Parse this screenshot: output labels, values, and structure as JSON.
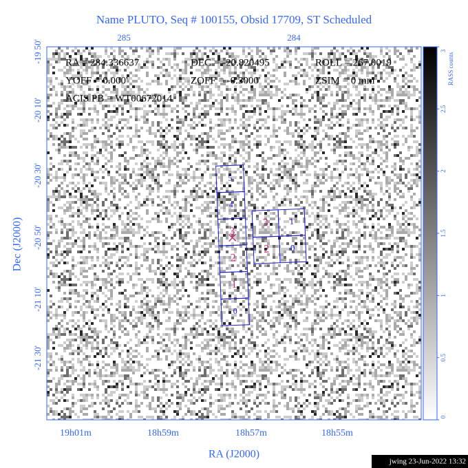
{
  "title": "Name PLUTO, Seq # 100155, Obsid 17709, ST Scheduled",
  "top_axis": {
    "ticks": [
      "285",
      "284"
    ]
  },
  "left_axis": {
    "label": "Dec (J2000)",
    "ticks": [
      "-19 50'",
      "-20 10'",
      "-20 30'",
      "-20 50'",
      "-21 10'",
      "-21 30'"
    ]
  },
  "bottom_axis": {
    "label": "RA (J2000)",
    "ticks": [
      "19h01m",
      "18h59m",
      "18h57m",
      "18h55m"
    ]
  },
  "colorbar": {
    "label": "RASS counts",
    "ticks": [
      "0",
      "0.5",
      "1",
      "1.5",
      "2",
      "2.5",
      "3"
    ]
  },
  "info": [
    [
      "RA = 284.336637",
      "DEC = -20.820495",
      "ROLL = 267.0019"
    ],
    [
      "YOFF = 0.000'",
      "ZOFF = -0.3000'",
      "ZSIM = 0 mm"
    ],
    [
      "ACIS PB = WT00672014"
    ]
  ],
  "acis_s": [
    "5",
    "4",
    "3",
    "2",
    "1",
    "0"
  ],
  "acis_i": [
    "3",
    "1",
    "2",
    "0"
  ],
  "footer": "jwing 23-Jun-2022 13:32"
}
